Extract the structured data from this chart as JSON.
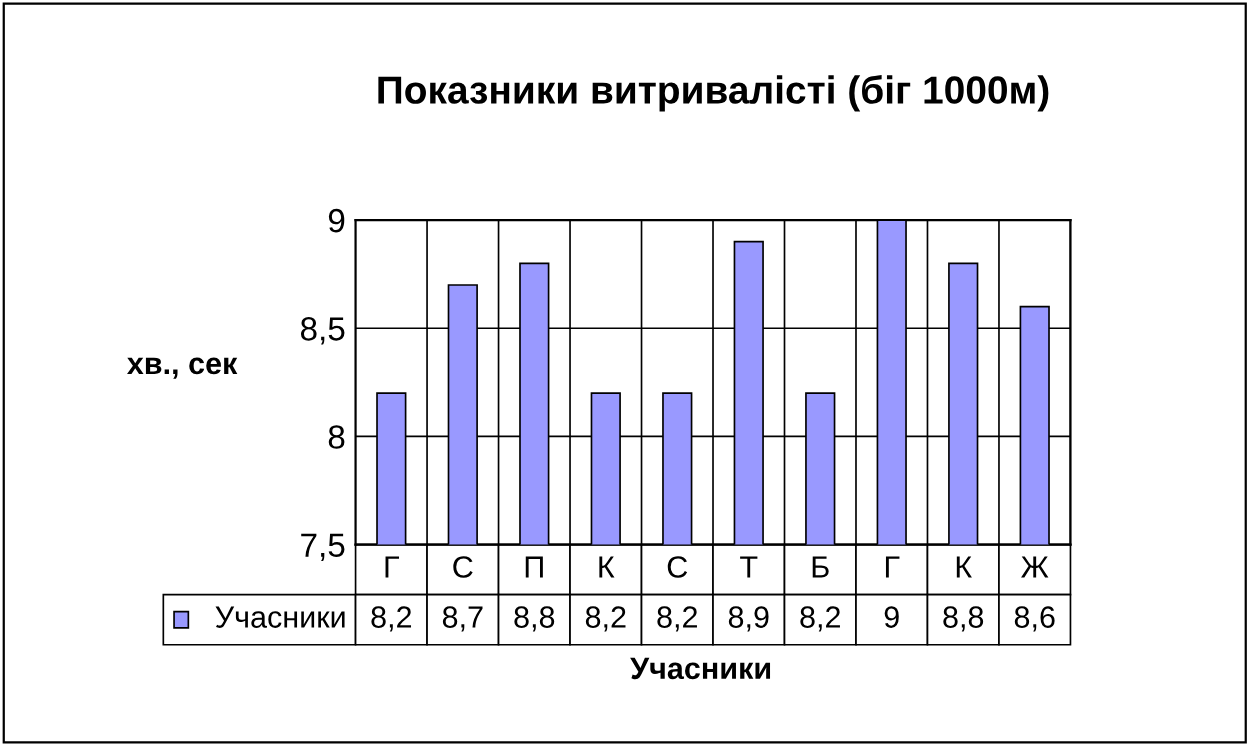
{
  "chart_data": {
    "type": "bar",
    "title": "Показники витривалісті (біг 1000м)",
    "xlabel": "Учасники",
    "ylabel": "хв., сек",
    "categories": [
      "Г",
      "С",
      "П",
      "К",
      "С",
      "Т",
      "Б",
      "Г",
      "К",
      "Ж"
    ],
    "series": [
      {
        "name": "Учасники",
        "color": "#9999ff",
        "values": [
          8.2,
          8.7,
          8.8,
          8.2,
          8.2,
          8.9,
          8.2,
          9,
          8.8,
          8.6
        ],
        "value_labels": [
          "8,2",
          "8,7",
          "8,8",
          "8,2",
          "8,2",
          "8,9",
          "8,2",
          "9",
          "8,8",
          "8,6"
        ]
      }
    ],
    "ylim": [
      7.5,
      9
    ],
    "yticks": [
      {
        "value": 7.5,
        "label": "7,5"
      },
      8,
      {
        "value": 8.5,
        "label": "8,5"
      },
      9
    ],
    "grid": true,
    "legend": "bottom"
  }
}
